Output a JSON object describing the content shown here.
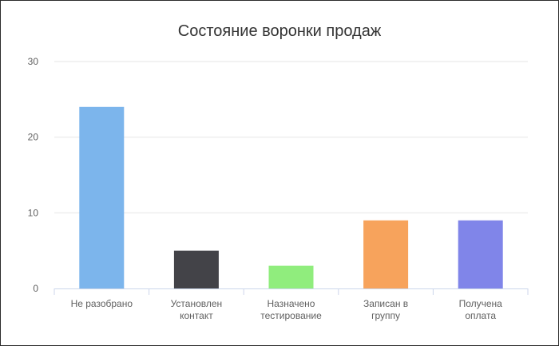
{
  "chart_data": {
    "type": "bar",
    "title": "Состояние воронки продаж",
    "categories": [
      [
        "Не разобрано"
      ],
      [
        "Установлен",
        "контакт"
      ],
      [
        "Назначено",
        "тестирование"
      ],
      [
        "Записан в",
        "группу"
      ],
      [
        "Получена",
        "оплата"
      ]
    ],
    "values": [
      24,
      5,
      3,
      9,
      9
    ],
    "colors": [
      "#7cb5ec",
      "#434348",
      "#90ed7d",
      "#f7a35c",
      "#8085e9"
    ],
    "ylim": [
      0,
      30
    ],
    "yticks": [
      0,
      10,
      20,
      30
    ],
    "grid": true,
    "legend": "none"
  }
}
